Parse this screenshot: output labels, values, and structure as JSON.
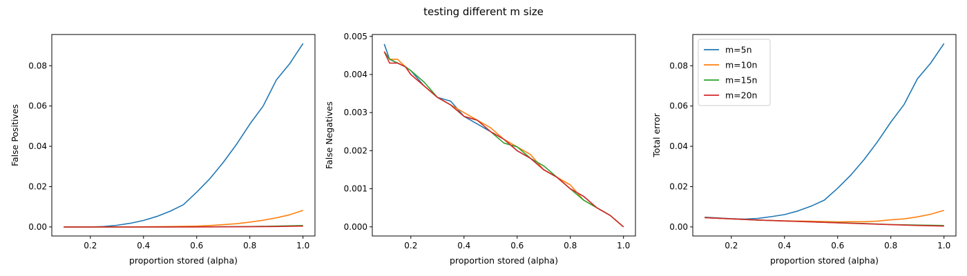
{
  "figure": {
    "title": "testing different m size"
  },
  "colors": {
    "m=5n": "#1f77b4",
    "m=10n": "#ff7f0e",
    "m=15n": "#2ca02c",
    "m=20n": "#d62728"
  },
  "chart_data": [
    {
      "type": "line",
      "title": "",
      "xlabel": "proportion stored (alpha)",
      "ylabel": "False Positives",
      "xlim": [
        0.055,
        1.045
      ],
      "ylim": [
        -0.0045,
        0.0955
      ],
      "xticks": [
        0.2,
        0.4,
        0.6,
        0.8,
        1.0
      ],
      "xtick_labels": [
        "0.2",
        "0.4",
        "0.6",
        "0.8",
        "1.0"
      ],
      "yticks": [
        0.0,
        0.02,
        0.04,
        0.06,
        0.08
      ],
      "ytick_labels": [
        "0.00",
        "0.02",
        "0.04",
        "0.06",
        "0.08"
      ],
      "grid": false,
      "legend": "none",
      "series": [
        {
          "key": "m=5n",
          "x": [
            0.1,
            0.2,
            0.25,
            0.3,
            0.35,
            0.4,
            0.45,
            0.5,
            0.55,
            0.6,
            0.65,
            0.7,
            0.75,
            0.8,
            0.85,
            0.9,
            0.95,
            1.0
          ],
          "y": [
            0.0,
            0.0,
            0.0002,
            0.0008,
            0.0018,
            0.0032,
            0.0052,
            0.0078,
            0.011,
            0.0172,
            0.024,
            0.032,
            0.041,
            0.051,
            0.06,
            0.073,
            0.081,
            0.091
          ]
        },
        {
          "key": "m=10n",
          "x": [
            0.1,
            0.3,
            0.4,
            0.5,
            0.6,
            0.65,
            0.7,
            0.75,
            0.8,
            0.85,
            0.9,
            0.95,
            1.0
          ],
          "y": [
            0.0,
            0.0,
            5e-05,
            0.0002,
            0.0004,
            0.0007,
            0.0011,
            0.0016,
            0.0024,
            0.0033,
            0.0045,
            0.006,
            0.0082
          ]
        },
        {
          "key": "m=15n",
          "x": [
            0.1,
            0.5,
            0.7,
            0.8,
            0.9,
            1.0
          ],
          "y": [
            0.0,
            0.0,
            0.0001,
            0.0002,
            0.0004,
            0.0007
          ]
        },
        {
          "key": "m=20n",
          "x": [
            0.1,
            0.6,
            0.8,
            0.9,
            1.0
          ],
          "y": [
            0.0,
            0.0,
            0.0001,
            0.0002,
            0.0004
          ]
        }
      ]
    },
    {
      "type": "line",
      "title": "",
      "xlabel": "proportion stored (alpha)",
      "ylabel": "False Negatives",
      "xlim": [
        0.055,
        1.045
      ],
      "ylim": [
        -0.00024,
        0.00505
      ],
      "xticks": [
        0.2,
        0.4,
        0.6,
        0.8,
        1.0
      ],
      "xtick_labels": [
        "0.2",
        "0.4",
        "0.6",
        "0.8",
        "1.0"
      ],
      "yticks": [
        0.0,
        0.001,
        0.002,
        0.003,
        0.004,
        0.005
      ],
      "ytick_labels": [
        "0.000",
        "0.001",
        "0.002",
        "0.003",
        "0.004",
        "0.005"
      ],
      "grid": false,
      "legend": "none",
      "series": [
        {
          "key": "m=5n",
          "x": [
            0.1,
            0.12,
            0.15,
            0.18,
            0.2,
            0.25,
            0.3,
            0.35,
            0.4,
            0.45,
            0.5,
            0.55,
            0.6,
            0.65,
            0.7,
            0.75,
            0.8,
            0.85,
            0.9,
            0.95,
            1.0
          ],
          "y": [
            0.0048,
            0.0044,
            0.0043,
            0.0042,
            0.0041,
            0.0037,
            0.0034,
            0.0033,
            0.0029,
            0.0027,
            0.0025,
            0.0023,
            0.002,
            0.0018,
            0.0015,
            0.0013,
            0.001,
            0.0008,
            0.0005,
            0.0003,
            0.0
          ]
        },
        {
          "key": "m=10n",
          "x": [
            0.1,
            0.12,
            0.15,
            0.18,
            0.2,
            0.25,
            0.3,
            0.35,
            0.4,
            0.45,
            0.5,
            0.55,
            0.6,
            0.65,
            0.7,
            0.75,
            0.8,
            0.85,
            0.9,
            0.95,
            1.0
          ],
          "y": [
            0.0046,
            0.0044,
            0.0044,
            0.0042,
            0.004,
            0.0037,
            0.0034,
            0.0032,
            0.003,
            0.0028,
            0.0026,
            0.0023,
            0.0021,
            0.0019,
            0.0015,
            0.0013,
            0.0011,
            0.0007,
            0.0005,
            0.0003,
            0.0
          ]
        },
        {
          "key": "m=15n",
          "x": [
            0.1,
            0.12,
            0.15,
            0.18,
            0.2,
            0.25,
            0.3,
            0.35,
            0.4,
            0.45,
            0.5,
            0.55,
            0.6,
            0.65,
            0.7,
            0.75,
            0.8,
            0.85,
            0.9,
            0.95,
            1.0
          ],
          "y": [
            0.0046,
            0.0044,
            0.0043,
            0.0042,
            0.0041,
            0.0038,
            0.0034,
            0.0032,
            0.0029,
            0.0028,
            0.0025,
            0.0022,
            0.0021,
            0.0018,
            0.0016,
            0.0013,
            0.001,
            0.0007,
            0.0005,
            0.0003,
            0.0
          ]
        },
        {
          "key": "m=20n",
          "x": [
            0.1,
            0.12,
            0.15,
            0.18,
            0.2,
            0.25,
            0.3,
            0.35,
            0.4,
            0.45,
            0.5,
            0.55,
            0.6,
            0.65,
            0.7,
            0.75,
            0.8,
            0.85,
            0.9,
            0.95,
            1.0
          ],
          "y": [
            0.0046,
            0.0043,
            0.0043,
            0.0042,
            0.004,
            0.0037,
            0.0034,
            0.0032,
            0.0029,
            0.0028,
            0.0025,
            0.0023,
            0.002,
            0.0018,
            0.0015,
            0.0013,
            0.001,
            0.0008,
            0.0005,
            0.0003,
            0.0
          ]
        }
      ]
    },
    {
      "type": "line",
      "title": "",
      "xlabel": "proportion stored (alpha)",
      "ylabel": "Total error",
      "xlim": [
        0.055,
        1.045
      ],
      "ylim": [
        -0.0045,
        0.0955
      ],
      "xticks": [
        0.2,
        0.4,
        0.6,
        0.8,
        1.0
      ],
      "xtick_labels": [
        "0.2",
        "0.4",
        "0.6",
        "0.8",
        "1.0"
      ],
      "yticks": [
        0.0,
        0.02,
        0.04,
        0.06,
        0.08
      ],
      "ytick_labels": [
        "0.00",
        "0.02",
        "0.04",
        "0.06",
        "0.08"
      ],
      "grid": false,
      "legend": "top-left",
      "series": [
        {
          "key": "m=5n",
          "name": "m=5n",
          "x": [
            0.1,
            0.2,
            0.25,
            0.3,
            0.35,
            0.4,
            0.45,
            0.5,
            0.55,
            0.6,
            0.65,
            0.7,
            0.75,
            0.8,
            0.85,
            0.9,
            0.95,
            1.0
          ],
          "y": [
            0.0048,
            0.0041,
            0.0039,
            0.0042,
            0.0051,
            0.0061,
            0.0079,
            0.0103,
            0.0133,
            0.0192,
            0.0258,
            0.0335,
            0.0423,
            0.052,
            0.0608,
            0.0735,
            0.0813,
            0.091
          ]
        },
        {
          "key": "m=10n",
          "name": "m=10n",
          "x": [
            0.1,
            0.3,
            0.4,
            0.5,
            0.6,
            0.65,
            0.7,
            0.75,
            0.8,
            0.85,
            0.9,
            0.95,
            1.0
          ],
          "y": [
            0.0046,
            0.0034,
            0.003,
            0.0028,
            0.0025,
            0.0026,
            0.0026,
            0.0029,
            0.0035,
            0.004,
            0.005,
            0.0063,
            0.0082
          ]
        },
        {
          "key": "m=15n",
          "name": "m=15n",
          "x": [
            0.1,
            0.3,
            0.5,
            0.7,
            0.8,
            0.9,
            1.0
          ],
          "y": [
            0.0046,
            0.0034,
            0.0025,
            0.0017,
            0.0012,
            0.0009,
            0.0007
          ]
        },
        {
          "key": "m=20n",
          "name": "m=20n",
          "x": [
            0.1,
            0.3,
            0.5,
            0.6,
            0.8,
            0.9,
            1.0
          ],
          "y": [
            0.0046,
            0.0034,
            0.0025,
            0.002,
            0.0011,
            0.0007,
            0.0004
          ]
        }
      ]
    }
  ]
}
